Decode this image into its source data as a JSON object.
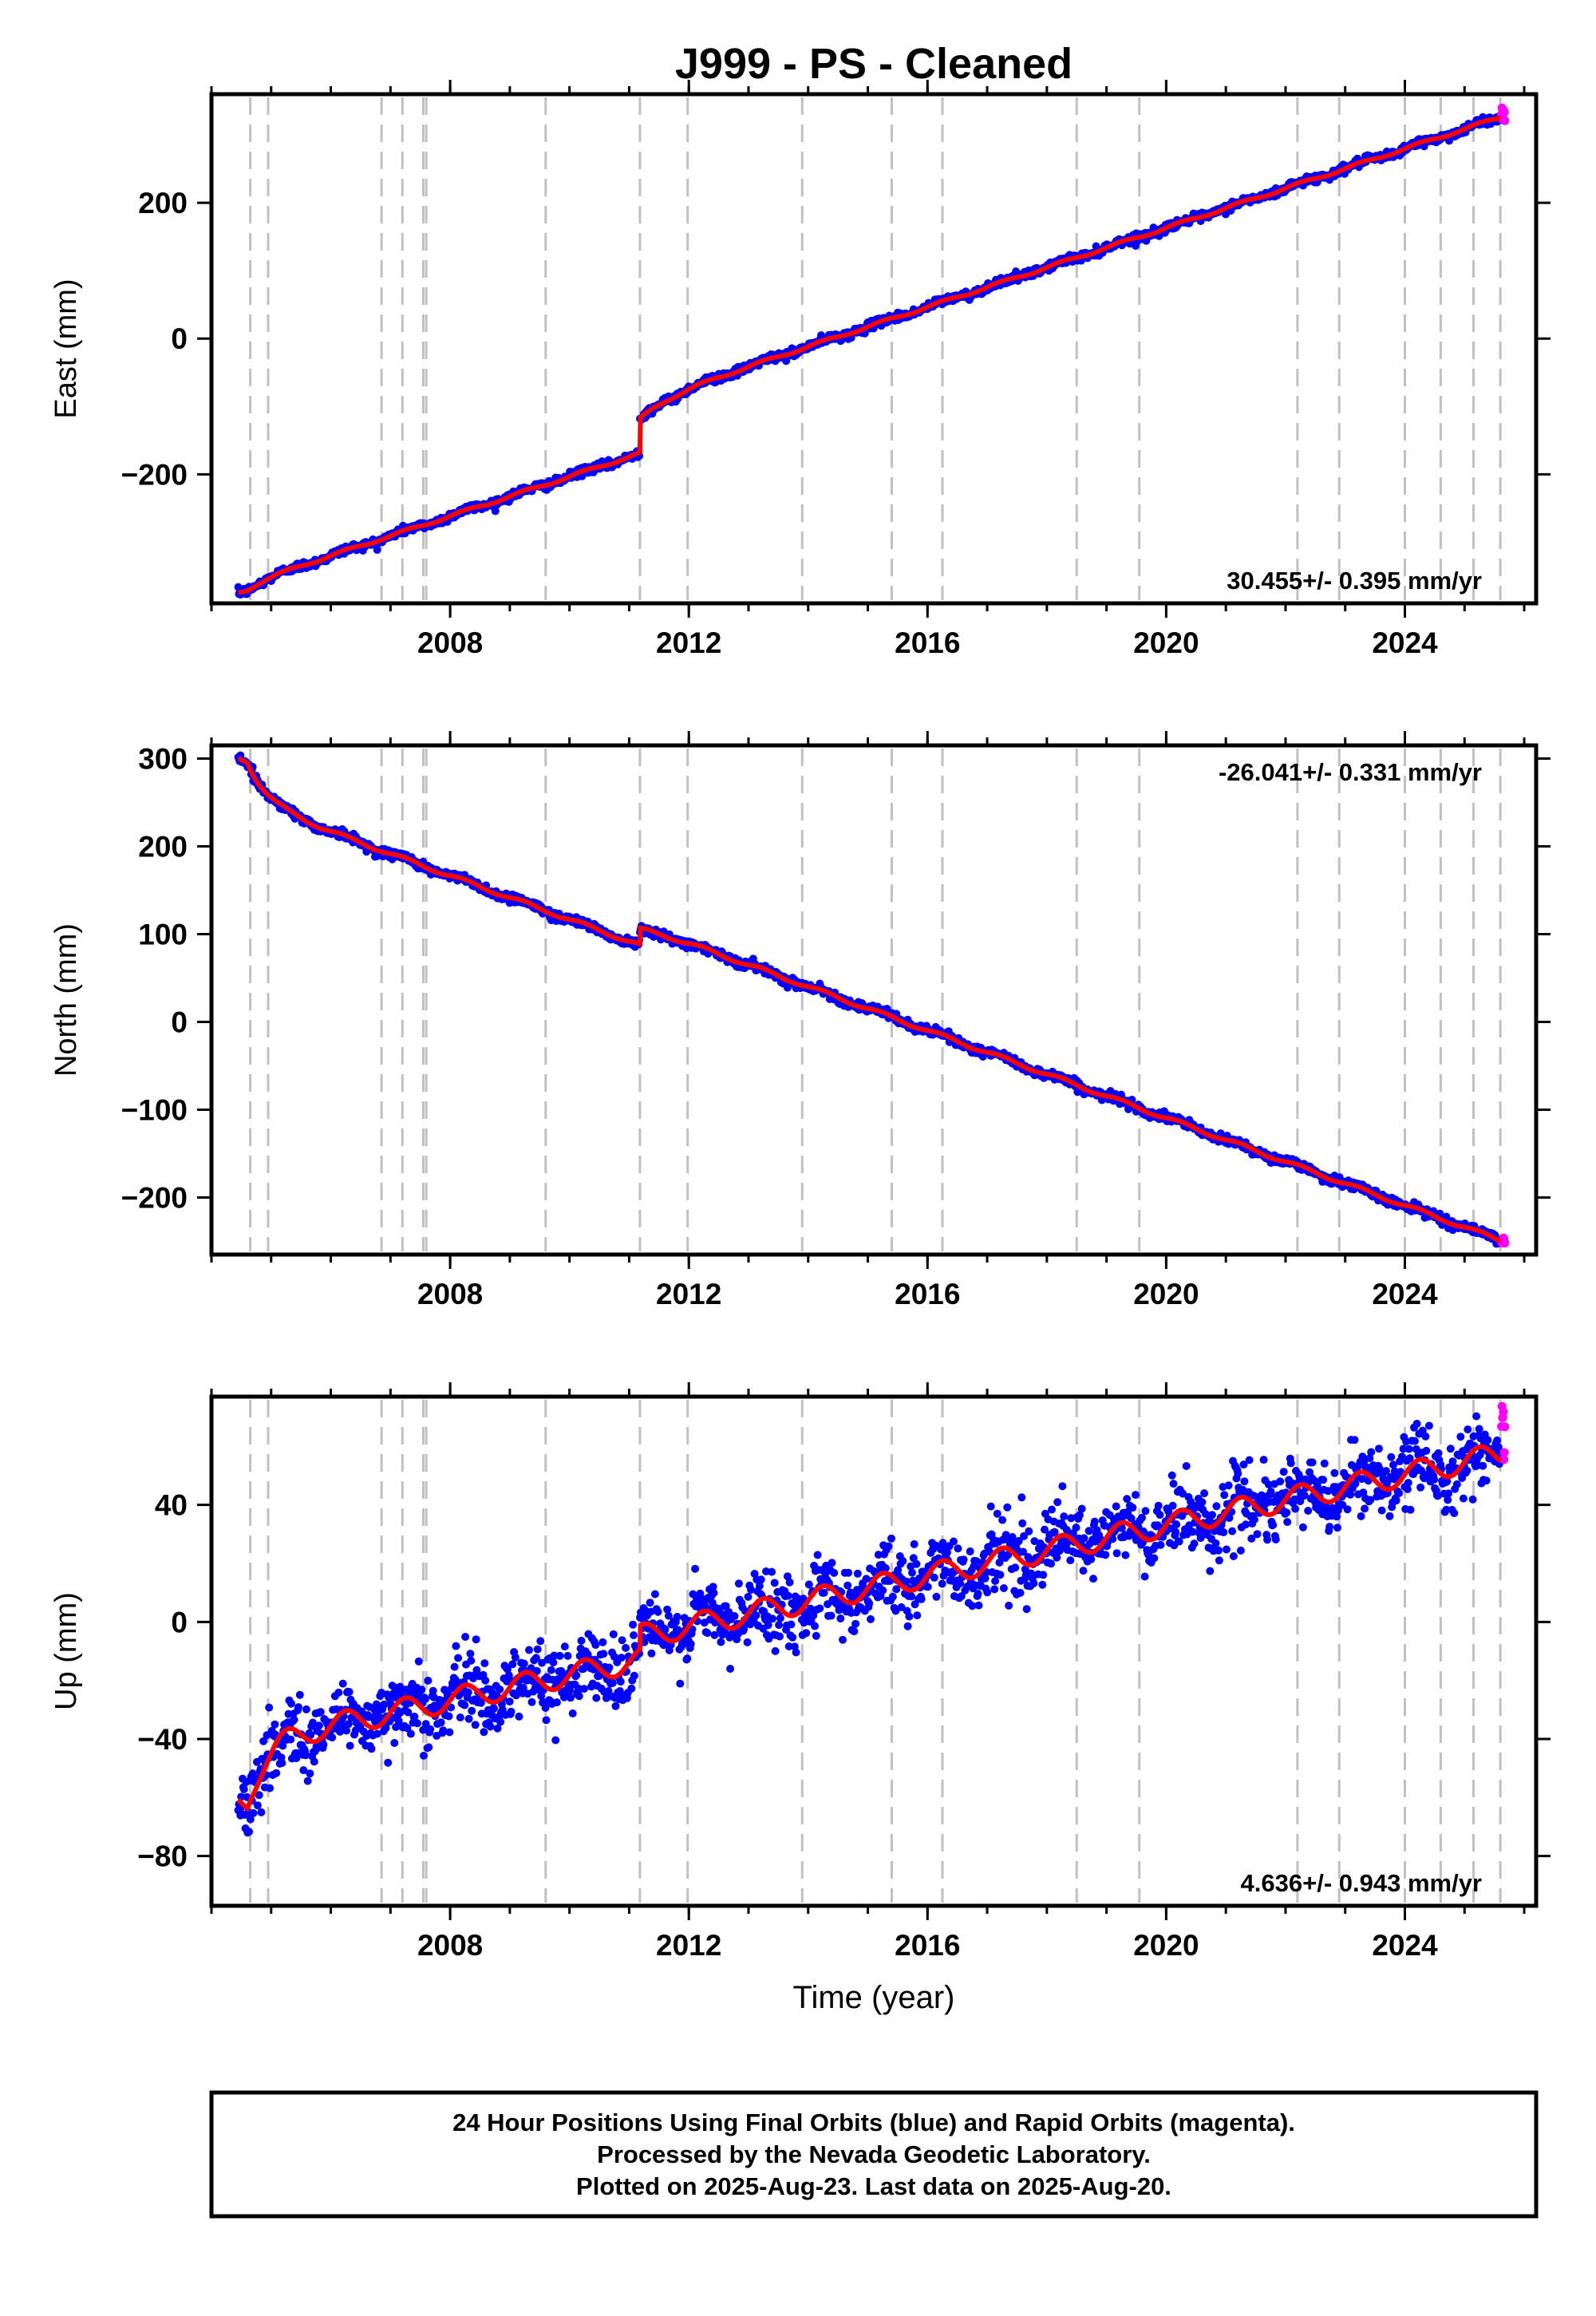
{
  "title": "J999  - PS - Cleaned",
  "footer": {
    "line1": "24 Hour Positions Using Final Orbits (blue) and Rapid Orbits (magenta).",
    "line2": "Processed by the Nevada Geodetic Laboratory.",
    "line3": "Plotted on 2025-Aug-23. Last data on 2025-Aug-20."
  },
  "colors": {
    "final_orbits": "#0000ff",
    "rapid_orbits": "#ff00ff",
    "model_fit": "#ff0000",
    "equipment_change_lines": "#c0c0c0",
    "frame": "#000000"
  },
  "chart_data": [
    {
      "type": "scatter",
      "name": "east",
      "ylabel": "East (mm)",
      "xlabel": "",
      "xlim": [
        2004.0,
        2026.2
      ],
      "ylim": [
        -390,
        360
      ],
      "yticks": [
        -200,
        0,
        200
      ],
      "xticks": [
        2008,
        2012,
        2016,
        2020,
        2024
      ],
      "rate_text": "30.455+/- 0.395 mm/yr",
      "rate_position": "bottom-right",
      "start": [
        2004.45,
        -375
      ],
      "end": [
        2025.6,
        325
      ],
      "rate": 30.455,
      "seasonal_amp": 2,
      "noise_sd": 3,
      "offset_2011": 50,
      "postseismic": [
        [
          2004.6,
          10,
          0.3
        ],
        [
          2011.18,
          25,
          0.5
        ]
      ],
      "rapid_range": [
        320,
        340
      ]
    },
    {
      "type": "scatter",
      "name": "north",
      "ylabel": "North (mm)",
      "xlabel": "",
      "xlim": [
        2004.0,
        2026.2
      ],
      "ylim": [
        -265,
        315
      ],
      "yticks": [
        -200,
        -100,
        0,
        100,
        200,
        300
      ],
      "xticks": [
        2008,
        2012,
        2016,
        2020,
        2024
      ],
      "rate_text": "-26.041+/- 0.331 mm/yr",
      "rate_position": "top-right",
      "start": [
        2004.45,
        300
      ],
      "end": [
        2025.6,
        -250
      ],
      "rate": -26.041,
      "seasonal_amp": 2,
      "noise_sd": 2.5,
      "offset_2011": 18,
      "postseismic": [
        [
          2004.6,
          -45,
          0.35
        ],
        [
          2011.18,
          5,
          0.4
        ]
      ],
      "rapid_range": [
        -252,
        -246
      ]
    },
    {
      "type": "scatter",
      "name": "up",
      "ylabel": "Up (mm)",
      "xlabel": "Time (year)",
      "xlim": [
        2004.0,
        2026.2
      ],
      "ylim": [
        -97,
        77
      ],
      "yticks": [
        -80,
        -40,
        0,
        40
      ],
      "xticks": [
        2008,
        2012,
        2016,
        2020,
        2024
      ],
      "rate_text": "4.636+/- 0.943 mm/yr",
      "rate_position": "bottom-right",
      "start": [
        2004.45,
        -62
      ],
      "end": [
        2025.6,
        55
      ],
      "rate": 4.636,
      "seasonal_amp": 4,
      "noise_sd": 6,
      "offset_2011": 8,
      "postseismic": [
        [
          2004.6,
          20,
          0.3
        ]
      ],
      "rapid_range": [
        52,
        75
      ]
    }
  ],
  "equipment_changes": [
    2004.65,
    2004.95,
    2006.85,
    2007.2,
    2007.55,
    2007.6,
    2009.6,
    2011.18,
    2011.98,
    2013.9,
    2015.4,
    2016.25,
    2018.5,
    2019.55,
    2022.2,
    2022.9,
    2024.0,
    2024.6,
    2025.15,
    2025.6
  ]
}
